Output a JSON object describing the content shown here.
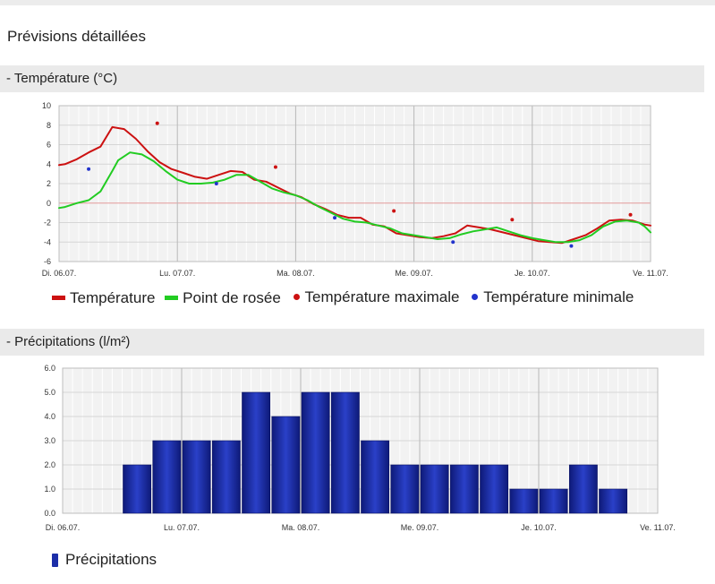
{
  "page": {
    "title": "Prévisions détaillées"
  },
  "temperature_section": {
    "header": "- Température (°C)"
  },
  "precip_section": {
    "header": "- Précipitations (l/m²)"
  },
  "colors": {
    "temperature": "#cc1111",
    "dew_point": "#22cc22",
    "temp_max": "#cc1111",
    "temp_min": "#2233cc",
    "precip_bar": "#1c2ea8",
    "zero_line": "#e39a9a",
    "grid": "#d6d6d6",
    "plot_bg": "#f2f2f2"
  },
  "chart_data": [
    {
      "type": "line",
      "title": "",
      "xlabel": "",
      "ylabel": "",
      "x_unit": "days since Di. 06.07.",
      "xlim": [
        0,
        5
      ],
      "ylim": [
        -6,
        10
      ],
      "y_ticks": [
        10,
        8,
        6,
        4,
        2,
        0,
        -2,
        -4,
        -6
      ],
      "x_tick_labels": [
        "Di. 06.07.",
        "Lu. 07.07.",
        "Ma. 08.07.",
        "Me. 09.07.",
        "Je. 10.07.",
        "Ve. 11.07."
      ],
      "grid": true,
      "legend_position": "bottom",
      "series": [
        {
          "name": "Température",
          "kind": "line",
          "points": [
            [
              0,
              3.9
            ],
            [
              0.05,
              4.0
            ],
            [
              0.15,
              4.5
            ],
            [
              0.25,
              5.2
            ],
            [
              0.35,
              5.8
            ],
            [
              0.45,
              7.8
            ],
            [
              0.55,
              7.6
            ],
            [
              0.65,
              6.6
            ],
            [
              0.75,
              5.3
            ],
            [
              0.85,
              4.2
            ],
            [
              0.95,
              3.5
            ],
            [
              1.05,
              3.1
            ],
            [
              1.15,
              2.7
            ],
            [
              1.25,
              2.5
            ],
            [
              1.35,
              2.9
            ],
            [
              1.45,
              3.3
            ],
            [
              1.55,
              3.2
            ],
            [
              1.65,
              2.4
            ],
            [
              1.75,
              2.2
            ],
            [
              1.85,
              1.6
            ],
            [
              1.95,
              1.0
            ],
            [
              2.05,
              0.6
            ],
            [
              2.15,
              -0.1
            ],
            [
              2.25,
              -0.6
            ],
            [
              2.35,
              -1.2
            ],
            [
              2.45,
              -1.5
            ],
            [
              2.55,
              -1.5
            ],
            [
              2.65,
              -2.2
            ],
            [
              2.75,
              -2.4
            ],
            [
              2.85,
              -3.1
            ],
            [
              2.95,
              -3.3
            ],
            [
              3.05,
              -3.5
            ],
            [
              3.15,
              -3.6
            ],
            [
              3.25,
              -3.4
            ],
            [
              3.35,
              -3.1
            ],
            [
              3.45,
              -2.3
            ],
            [
              3.55,
              -2.5
            ],
            [
              3.65,
              -2.7
            ],
            [
              3.75,
              -3.0
            ],
            [
              3.85,
              -3.3
            ],
            [
              3.95,
              -3.6
            ],
            [
              4.05,
              -3.9
            ],
            [
              4.15,
              -4.0
            ],
            [
              4.25,
              -4.1
            ],
            [
              4.35,
              -3.7
            ],
            [
              4.45,
              -3.3
            ],
            [
              4.55,
              -2.6
            ],
            [
              4.65,
              -1.8
            ],
            [
              4.75,
              -1.7
            ],
            [
              4.85,
              -1.8
            ],
            [
              4.95,
              -2.2
            ],
            [
              5,
              -2.3
            ]
          ]
        },
        {
          "name": "Point de rosée",
          "kind": "line",
          "points": [
            [
              0,
              -0.5
            ],
            [
              0.05,
              -0.4
            ],
            [
              0.15,
              0.0
            ],
            [
              0.25,
              0.3
            ],
            [
              0.35,
              1.2
            ],
            [
              0.45,
              3.3
            ],
            [
              0.5,
              4.4
            ],
            [
              0.6,
              5.2
            ],
            [
              0.7,
              5.0
            ],
            [
              0.8,
              4.3
            ],
            [
              0.9,
              3.3
            ],
            [
              1.0,
              2.4
            ],
            [
              1.1,
              2.0
            ],
            [
              1.2,
              2.0
            ],
            [
              1.3,
              2.1
            ],
            [
              1.4,
              2.4
            ],
            [
              1.5,
              2.9
            ],
            [
              1.6,
              2.9
            ],
            [
              1.7,
              2.2
            ],
            [
              1.8,
              1.5
            ],
            [
              1.9,
              1.1
            ],
            [
              2.0,
              0.8
            ],
            [
              2.1,
              0.3
            ],
            [
              2.2,
              -0.4
            ],
            [
              2.3,
              -1.0
            ],
            [
              2.4,
              -1.6
            ],
            [
              2.5,
              -1.9
            ],
            [
              2.6,
              -2.0
            ],
            [
              2.7,
              -2.3
            ],
            [
              2.8,
              -2.6
            ],
            [
              2.9,
              -3.1
            ],
            [
              3.0,
              -3.3
            ],
            [
              3.1,
              -3.5
            ],
            [
              3.2,
              -3.7
            ],
            [
              3.3,
              -3.6
            ],
            [
              3.4,
              -3.2
            ],
            [
              3.5,
              -2.9
            ],
            [
              3.6,
              -2.7
            ],
            [
              3.7,
              -2.5
            ],
            [
              3.8,
              -2.9
            ],
            [
              3.9,
              -3.3
            ],
            [
              4.0,
              -3.6
            ],
            [
              4.1,
              -3.8
            ],
            [
              4.2,
              -4.0
            ],
            [
              4.3,
              -4.0
            ],
            [
              4.4,
              -3.8
            ],
            [
              4.5,
              -3.3
            ],
            [
              4.6,
              -2.4
            ],
            [
              4.7,
              -1.9
            ],
            [
              4.8,
              -1.8
            ],
            [
              4.9,
              -2.0
            ],
            [
              4.95,
              -2.4
            ],
            [
              5,
              -3.0
            ]
          ]
        },
        {
          "name": "Température maximale",
          "kind": "dot",
          "points": [
            [
              0.83,
              8.2
            ],
            [
              1.83,
              3.7
            ],
            [
              2.83,
              -0.8
            ],
            [
              3.83,
              -1.7
            ],
            [
              4.83,
              -1.2
            ]
          ]
        },
        {
          "name": "Température minimale",
          "kind": "dot",
          "points": [
            [
              0.25,
              3.5
            ],
            [
              1.33,
              2.0
            ],
            [
              2.33,
              -1.5
            ],
            [
              3.33,
              -4.0
            ],
            [
              4.33,
              -4.4
            ]
          ]
        }
      ]
    },
    {
      "type": "bar",
      "title": "",
      "xlabel": "",
      "ylabel": "",
      "x_unit": "days since Di. 06.07.",
      "xlim": [
        0,
        5
      ],
      "ylim": [
        0,
        6
      ],
      "y_tick_labels": [
        "6.0",
        "5.0",
        "4.0",
        "3.0",
        "2.0",
        "1.0",
        "0.0"
      ],
      "x_tick_labels": [
        "Di. 06.07.",
        "Lu. 07.07.",
        "Ma. 08.07.",
        "Me. 09.07.",
        "Je. 10.07.",
        "Ve. 11.07."
      ],
      "grid": true,
      "legend_position": "bottom",
      "bar_width_days": 0.25,
      "series": [
        {
          "name": "Précipitations",
          "bars": [
            [
              0.5,
              2
            ],
            [
              0.75,
              3
            ],
            [
              1.0,
              3
            ],
            [
              1.25,
              3
            ],
            [
              1.5,
              5
            ],
            [
              1.75,
              4
            ],
            [
              2.0,
              5
            ],
            [
              2.25,
              5
            ],
            [
              2.5,
              3
            ],
            [
              2.75,
              2
            ],
            [
              3.0,
              2
            ],
            [
              3.25,
              2
            ],
            [
              3.5,
              2
            ],
            [
              3.75,
              1
            ],
            [
              4.0,
              1
            ],
            [
              4.25,
              2
            ],
            [
              4.5,
              1
            ]
          ]
        }
      ]
    }
  ]
}
